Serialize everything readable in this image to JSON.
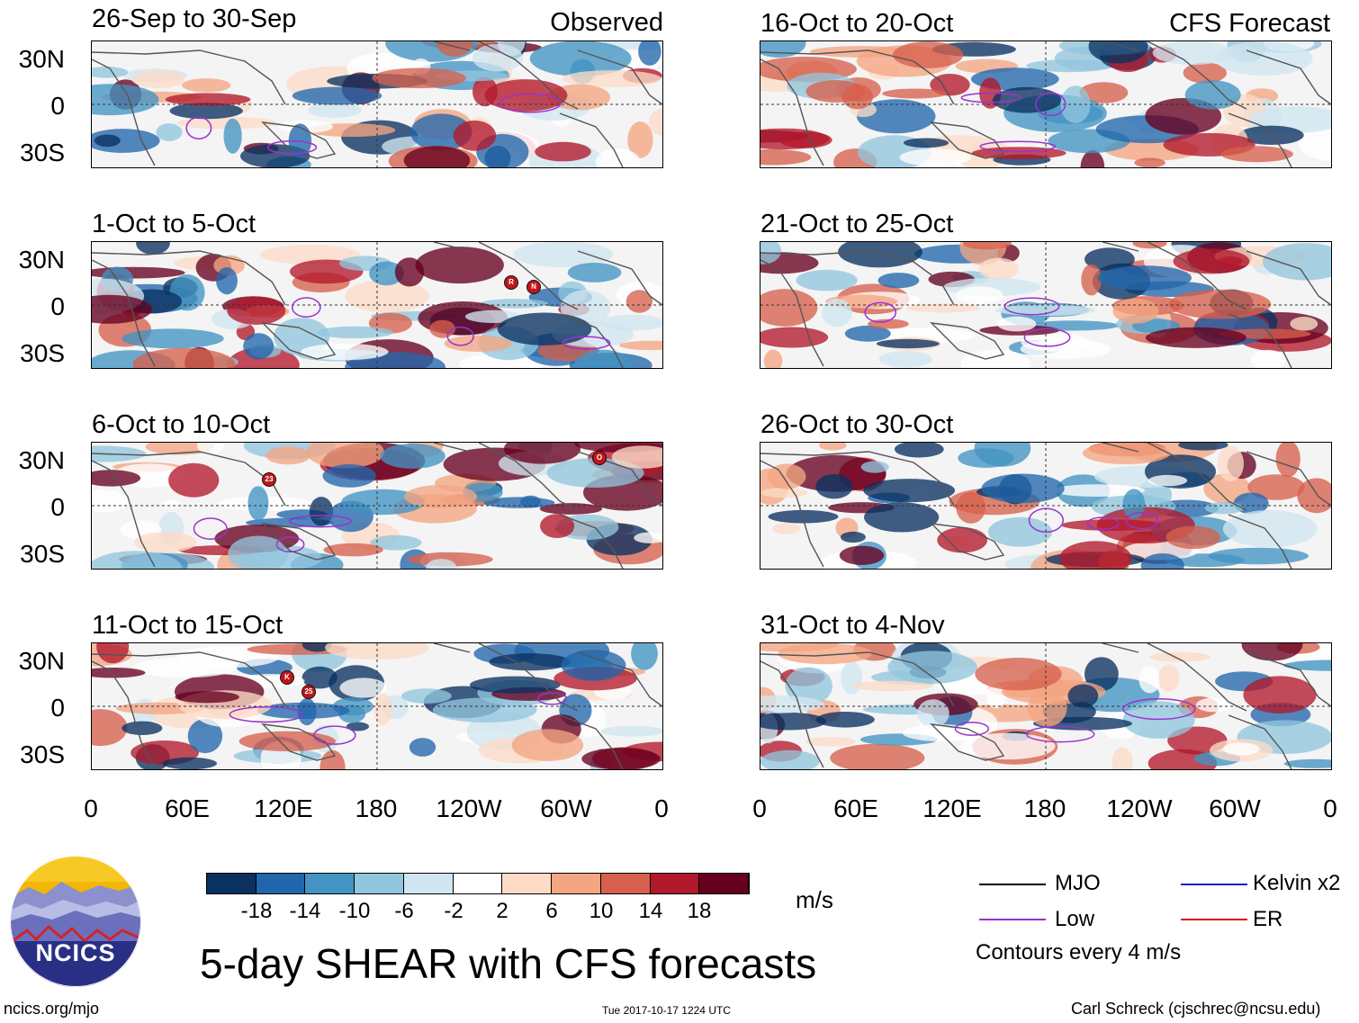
{
  "colors": {
    "colorbar": [
      "#0a3160",
      "#2166ac",
      "#4393c3",
      "#92c5de",
      "#d1e5f0",
      "#ffffff",
      "#fddbc7",
      "#f4a582",
      "#d6604d",
      "#b2182b",
      "#67001f"
    ],
    "mjo": "#000000",
    "low": "#9933cc",
    "kelvin": "#0000cc",
    "er": "#dd0000",
    "coast": "#555555"
  },
  "panels_observed": [
    {
      "title": "26-Sep to 30-Sep",
      "tag": "Observed"
    },
    {
      "title": "1-Oct to 5-Oct",
      "tag": ""
    },
    {
      "title": "6-Oct to 10-Oct",
      "tag": ""
    },
    {
      "title": "11-Oct to 15-Oct",
      "tag": ""
    }
  ],
  "panels_forecast": [
    {
      "title": "16-Oct to 20-Oct",
      "tag": "CFS Forecast"
    },
    {
      "title": "21-Oct to 25-Oct",
      "tag": ""
    },
    {
      "title": "26-Oct to 30-Oct",
      "tag": ""
    },
    {
      "title": "31-Oct to 4-Nov",
      "tag": ""
    }
  ],
  "lat_labels": [
    "30N",
    "0",
    "30S"
  ],
  "lon_labels": [
    "0",
    "60E",
    "120E",
    "180",
    "120W",
    "60W",
    "0"
  ],
  "storms": [
    {
      "symbol": "R"
    },
    {
      "symbol": "N"
    },
    {
      "symbol": "O"
    },
    {
      "symbol": "23"
    },
    {
      "symbol": "K"
    },
    {
      "symbol": "25"
    }
  ],
  "colorbar": {
    "ticks": [
      "-18",
      "-14",
      "-10",
      "-6",
      "-2",
      "2",
      "6",
      "10",
      "14",
      "18"
    ],
    "units": "m/s"
  },
  "legend": {
    "mjo": "MJO",
    "low": "Low",
    "kelvin": "Kelvin x2",
    "er": "ER",
    "contours_note": "Contours every 4 m/s"
  },
  "logo_text": "NCICS",
  "title": "5-day SHEAR with CFS forecasts",
  "footer": {
    "url": "ncics.org/mjo",
    "timestamp": "Tue 2017-10-17 1224 UTC",
    "credit": "Carl Schreck (cjschrec@ncsu.edu)"
  }
}
